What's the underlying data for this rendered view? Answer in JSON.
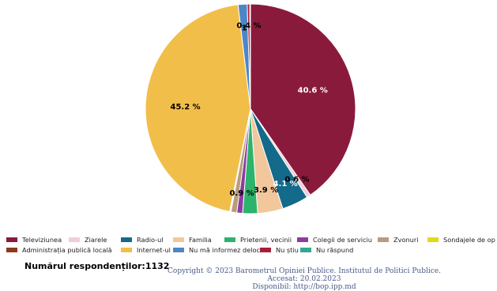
{
  "chart_data": {
    "type": "pie",
    "title": "",
    "slices": [
      {
        "label": "Televiziunea",
        "value": 40.6,
        "color": "#8a1a3c",
        "label_text": "40.6 %",
        "label_color": "#ffffff"
      },
      {
        "label": "Ziarele",
        "value": 0.6,
        "color": "#f3cdd6",
        "label_text": "0.6 %",
        "label_color": "#000000"
      },
      {
        "label": "Radio-ul",
        "value": 4.1,
        "color": "#146a8a",
        "label_text": "4.1 %",
        "label_color": "#ffffff"
      },
      {
        "label": "Familia",
        "value": 3.9,
        "color": "#f1c79b",
        "label_text": "3.9 %",
        "label_color": "#000000"
      },
      {
        "label": "Prietenii, vecinii",
        "value": 2.3,
        "color": "#2db36b",
        "label_text": "",
        "label_color": "#000000"
      },
      {
        "label": "Colegii de serviciu",
        "value": 0.9,
        "color": "#8e3ca0",
        "label_text": "0.9 %",
        "label_color": "#000000"
      },
      {
        "label": "Zvonuri",
        "value": 0.9,
        "color": "#b89c7c",
        "label_text": "",
        "label_color": "#000000"
      },
      {
        "label": "Sondajele de opinie",
        "value": 0.1,
        "color": "#e3d81c",
        "label_text": "",
        "label_color": "#000000"
      },
      {
        "label": "Administrația publică locală",
        "value": 0.1,
        "color": "#8c3a1f",
        "label_text": "",
        "label_color": "#000000"
      },
      {
        "label": "Internet-ul",
        "value": 45.2,
        "color": "#f2be4a",
        "label_text": "45.2 %",
        "label_color": "#000000"
      },
      {
        "label": "Nu mă informez deloc",
        "value": 1.4,
        "color": "#4d86c6",
        "label_text": "1",
        "label_color": "#000000"
      },
      {
        "label": "Nu știu",
        "value": 0.4,
        "color": "#a81f38",
        "label_text": "0.4 %",
        "label_color": "#000000"
      },
      {
        "label": "Nu răspund",
        "value": 0.1,
        "color": "#33a88e",
        "label_text": "",
        "label_color": "#000000"
      }
    ],
    "legend_position": "bottom"
  },
  "legend": {
    "row1": [
      {
        "label": "Televiziunea",
        "color": "#8a1a3c"
      },
      {
        "label": "Ziarele",
        "color": "#f3cdd6"
      },
      {
        "label": "Radio-ul",
        "color": "#146a8a"
      },
      {
        "label": "Familia",
        "color": "#f1c79b"
      },
      {
        "label": "Prietenii, vecinii",
        "color": "#2db36b"
      },
      {
        "label": "Colegii de serviciu",
        "color": "#8e3ca0"
      },
      {
        "label": "Zvonuri",
        "color": "#b89c7c"
      },
      {
        "label": "Sondajele de opinie",
        "color": "#e3d81c"
      }
    ],
    "row2": [
      {
        "label": "Administrația publică locală",
        "color": "#8c3a1f"
      },
      {
        "label": "Internet-ul",
        "color": "#f2be4a"
      },
      {
        "label": "Nu mă informez deloc",
        "color": "#4d86c6"
      },
      {
        "label": "Nu știu",
        "color": "#a81f38"
      },
      {
        "label": "Nu răspund",
        "color": "#33a88e"
      }
    ]
  },
  "respondents": "Numărul respondenților:1132",
  "footer": {
    "copyright": "Copyright © 2023 Barometrul Opiniei Publice. Institutul de Politici Publice.",
    "accessed": "Accesat: 20.02.2023",
    "available": "Disponibil: http://bop.ipp.md"
  }
}
